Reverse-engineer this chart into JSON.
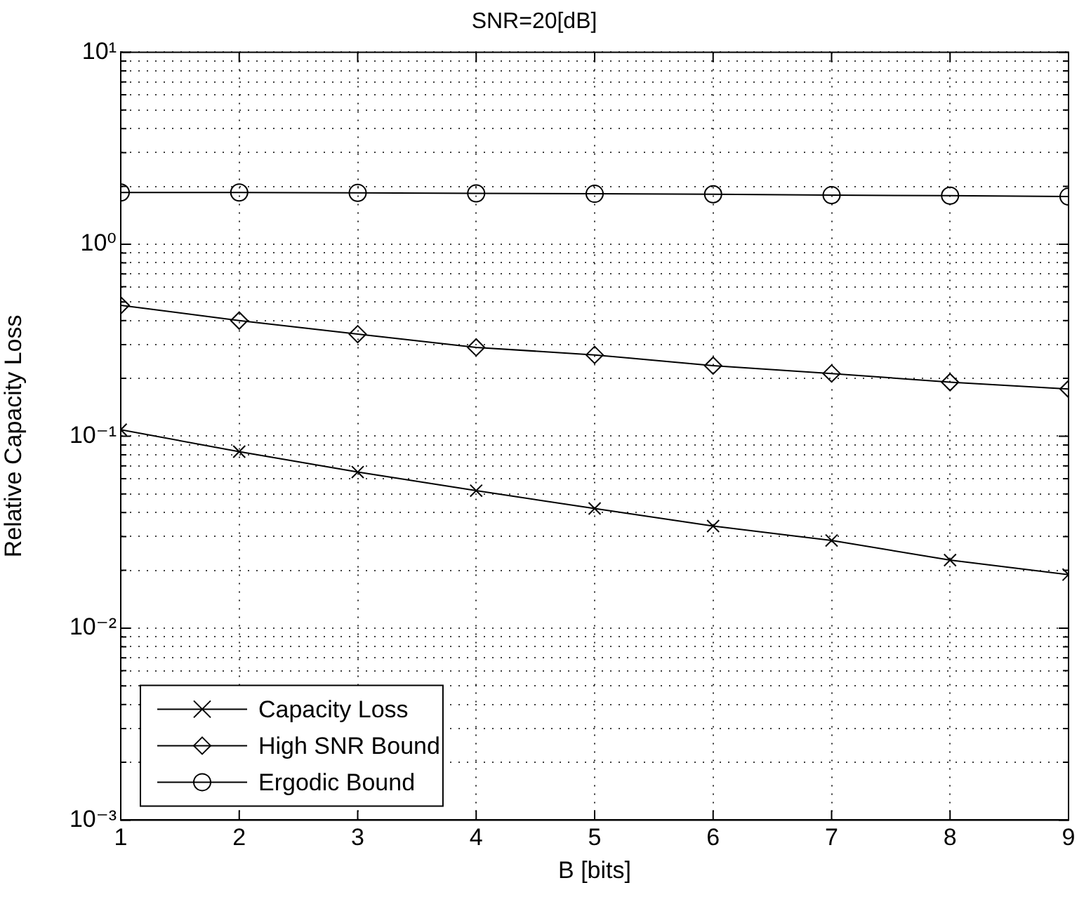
{
  "chart_data": {
    "type": "line",
    "title": "SNR=20[dB]",
    "xlabel": "B [bits]",
    "ylabel": "Relative Capacity Loss",
    "x": [
      1,
      2,
      3,
      4,
      5,
      6,
      7,
      8,
      9
    ],
    "series": [
      {
        "name": "Capacity Loss",
        "color": "#000000",
        "marker": "cross",
        "values": [
          0.108,
          0.083,
          0.065,
          0.052,
          0.042,
          0.034,
          0.0286,
          0.0226,
          0.019
        ]
      },
      {
        "name": "High SNR Bound",
        "color": "#000000",
        "marker": "diamond",
        "values": [
          0.48,
          0.4,
          0.34,
          0.29,
          0.265,
          0.233,
          0.212,
          0.191,
          0.176
        ]
      },
      {
        "name": "Ergodic Bound",
        "color": "#000000",
        "marker": "circle",
        "values": [
          1.86,
          1.86,
          1.85,
          1.84,
          1.83,
          1.82,
          1.8,
          1.79,
          1.77
        ]
      }
    ],
    "log": "y",
    "xlim": [
      1,
      9
    ],
    "xticks": [
      1,
      2,
      3,
      4,
      5,
      6,
      7,
      8,
      9
    ],
    "ylim": [
      0.001,
      10
    ],
    "yticks": [
      {
        "value": 0.001,
        "label": "10⁻³"
      },
      {
        "value": 0.002,
        "label": null
      },
      {
        "value": 0.003,
        "label": null
      },
      {
        "value": 0.004,
        "label": null
      },
      {
        "value": 0.005,
        "label": null
      },
      {
        "value": 0.006,
        "label": null
      },
      {
        "value": 0.007,
        "label": null
      },
      {
        "value": 0.008,
        "label": null
      },
      {
        "value": 0.009,
        "label": null
      },
      {
        "value": 0.01,
        "label": "10⁻²"
      },
      {
        "value": 0.02,
        "label": null
      },
      {
        "value": 0.03,
        "label": null
      },
      {
        "value": 0.04,
        "label": null
      },
      {
        "value": 0.05,
        "label": null
      },
      {
        "value": 0.06,
        "label": null
      },
      {
        "value": 0.07,
        "label": null
      },
      {
        "value": 0.08,
        "label": null
      },
      {
        "value": 0.09,
        "label": null
      },
      {
        "value": 0.1,
        "label": "10⁻¹"
      },
      {
        "value": 0.2,
        "label": null
      },
      {
        "value": 0.3,
        "label": null
      },
      {
        "value": 0.4,
        "label": null
      },
      {
        "value": 0.5,
        "label": null
      },
      {
        "value": 0.6,
        "label": null
      },
      {
        "value": 0.7,
        "label": null
      },
      {
        "value": 0.8,
        "label": null
      },
      {
        "value": 0.9,
        "label": null
      },
      {
        "value": 1,
        "label": "10⁰"
      },
      {
        "value": 2,
        "label": null
      },
      {
        "value": 3,
        "label": null
      },
      {
        "value": 4,
        "label": null
      },
      {
        "value": 5,
        "label": null
      },
      {
        "value": 6,
        "label": null
      },
      {
        "value": 7,
        "label": null
      },
      {
        "value": 8,
        "label": null
      },
      {
        "value": 9,
        "label": null
      },
      {
        "value": 10,
        "label": "10¹"
      }
    ],
    "grid": true,
    "legend": "bottom left",
    "line_style": "solid"
  }
}
